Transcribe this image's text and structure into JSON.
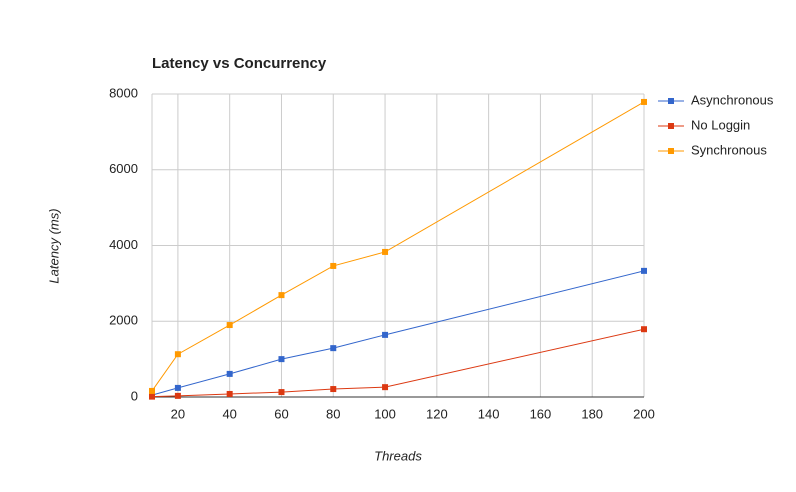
{
  "chart_data": {
    "type": "line",
    "title": "Latency vs Concurrency",
    "x_label": "Threads",
    "y_label": "Latency (ms)",
    "x": [
      10,
      20,
      40,
      60,
      80,
      100,
      200
    ],
    "series": [
      {
        "name": "Asynchronous",
        "color": "#3366cc",
        "values": [
          50,
          240,
          610,
          1000,
          1290,
          1640,
          3330
        ]
      },
      {
        "name": "No Loggin",
        "color": "#dc3912",
        "values": [
          10,
          30,
          80,
          130,
          210,
          260,
          1790
        ]
      },
      {
        "name": "Synchronous",
        "color": "#ff9900",
        "values": [
          160,
          1130,
          1900,
          2690,
          3460,
          3830,
          7790
        ]
      }
    ],
    "xlim": [
      10,
      200
    ],
    "xticks": [
      20,
      40,
      60,
      80,
      100,
      120,
      140,
      160,
      180,
      200
    ],
    "ylim": [
      0,
      8000
    ],
    "yticks": [
      0,
      2000,
      4000,
      6000,
      8000
    ],
    "grid": true,
    "legend": "right"
  }
}
